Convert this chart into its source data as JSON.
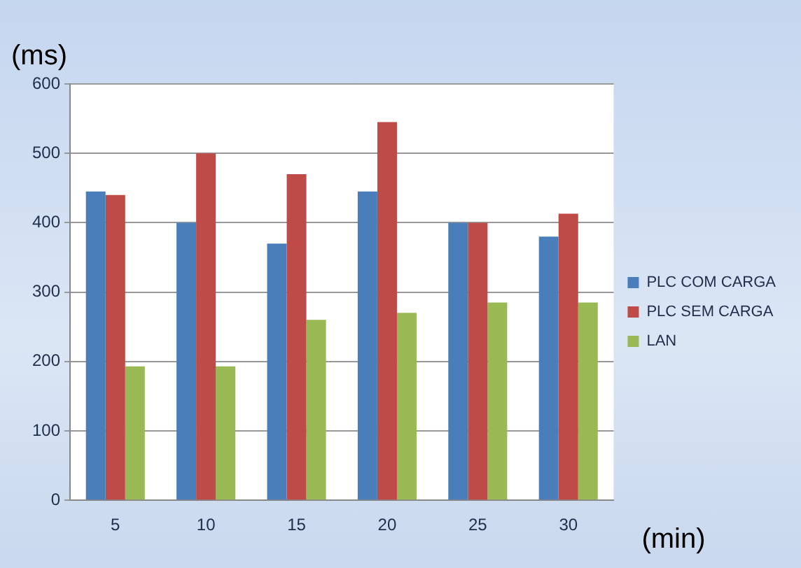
{
  "chart_data": {
    "type": "bar",
    "xlabel": "(min)",
    "ylabel": "(ms)",
    "categories": [
      "5",
      "10",
      "15",
      "20",
      "25",
      "30"
    ],
    "series": [
      {
        "name": "PLC COM CARGA",
        "color": "#4a7ebb",
        "values": [
          445,
          400,
          370,
          445,
          400,
          380
        ]
      },
      {
        "name": "PLC SEM CARGA",
        "color": "#be4b48",
        "values": [
          440,
          500,
          470,
          545,
          400,
          413
        ]
      },
      {
        "name": "LAN",
        "color": "#98b954",
        "values": [
          193,
          193,
          260,
          270,
          285,
          285
        ]
      }
    ],
    "ylim": [
      0,
      600
    ],
    "yticks": [
      0,
      100,
      200,
      300,
      400,
      500,
      600
    ],
    "grid": "y",
    "legend": "right"
  }
}
